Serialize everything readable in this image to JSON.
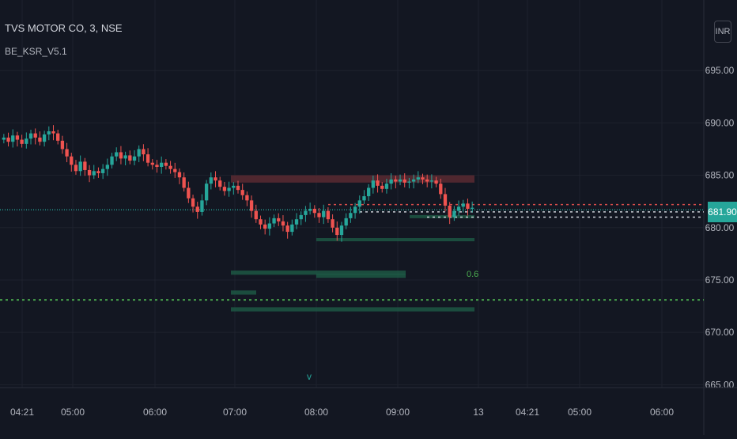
{
  "symbol_legend": "TVS MOTOR CO, 3, NSE",
  "indicator_legend": "BE_KSR_V5.1",
  "currency_button": "INR",
  "last_price_label": "681.90",
  "fib_label": "0.6",
  "signal_marker": "v",
  "colors": {
    "background": "#131722",
    "grid": "#1e222d",
    "up": "#26a69a",
    "down": "#ef5350",
    "support_zone": "#1e5b46",
    "resistance_zone": "#5a2a31",
    "axis_text": "#b2b5be"
  },
  "chart_data": {
    "type": "candlestick",
    "y_axis": {
      "ticks": [
        665,
        670,
        675,
        680,
        685,
        690,
        695
      ],
      "range": [
        664.5,
        700.0
      ]
    },
    "x_axis": {
      "tick_labels": [
        "04:21",
        "05:00",
        "06:00",
        "07:00",
        "08:00",
        "09:00",
        "13",
        "04:21",
        "05:00",
        "06:00"
      ]
    },
    "last_price": 681.9,
    "levels": [
      {
        "kind": "dotted",
        "color": "#26a69a",
        "price": 681.7
      },
      {
        "kind": "dotted",
        "color": "#ef5350",
        "price": 682.2
      },
      {
        "kind": "dotted",
        "color": "#e0e3eb",
        "price": 681.5
      },
      {
        "kind": "dotted",
        "color": "#e0e3eb",
        "price": 681.0
      },
      {
        "kind": "dotted",
        "color": "#4caf50",
        "price": 673.1
      }
    ],
    "zones": [
      {
        "type": "resistance",
        "from": 684.3,
        "to": 685.0
      },
      {
        "type": "support",
        "from": 678.7,
        "to": 679.0
      },
      {
        "type": "support",
        "from": 675.5,
        "to": 675.9
      },
      {
        "type": "support",
        "from": 675.2,
        "to": 675.6
      },
      {
        "type": "support",
        "from": 673.6,
        "to": 674.0
      },
      {
        "type": "support",
        "from": 672.0,
        "to": 672.4
      },
      {
        "type": "support",
        "from": 680.9,
        "to": 681.2
      }
    ],
    "closes": [
      688.6,
      688.2,
      688.8,
      688.4,
      688.0,
      688.5,
      689.0,
      688.6,
      688.2,
      688.9,
      689.2,
      689.0,
      688.3,
      687.5,
      686.8,
      686.0,
      685.4,
      686.3,
      685.5,
      685.0,
      685.4,
      685.2,
      685.6,
      686.0,
      686.8,
      687.2,
      686.6,
      686.9,
      686.4,
      686.8,
      687.5,
      687.0,
      686.2,
      686.0,
      685.8,
      686.2,
      685.9,
      685.6,
      685.3,
      684.8,
      683.8,
      682.8,
      682.0,
      681.5,
      682.6,
      684.2,
      684.8,
      684.5,
      683.9,
      683.5,
      683.8,
      684.0,
      683.6,
      683.1,
      682.6,
      681.6,
      680.8,
      680.3,
      679.9,
      680.4,
      680.9,
      680.6,
      680.2,
      679.6,
      680.3,
      680.8,
      681.2,
      681.6,
      681.8,
      681.4,
      681.0,
      681.6,
      680.8,
      680.0,
      679.3,
      680.2,
      680.9,
      681.4,
      682.0,
      682.6,
      683.0,
      683.8,
      684.5,
      684.0,
      683.7,
      684.2,
      684.6,
      684.4,
      684.6,
      684.3,
      684.4,
      684.6,
      684.8,
      684.6,
      684.4,
      684.5,
      684.2,
      683.2,
      682.1,
      681.0,
      681.6,
      682.0,
      682.3,
      681.8,
      681.9
    ]
  }
}
